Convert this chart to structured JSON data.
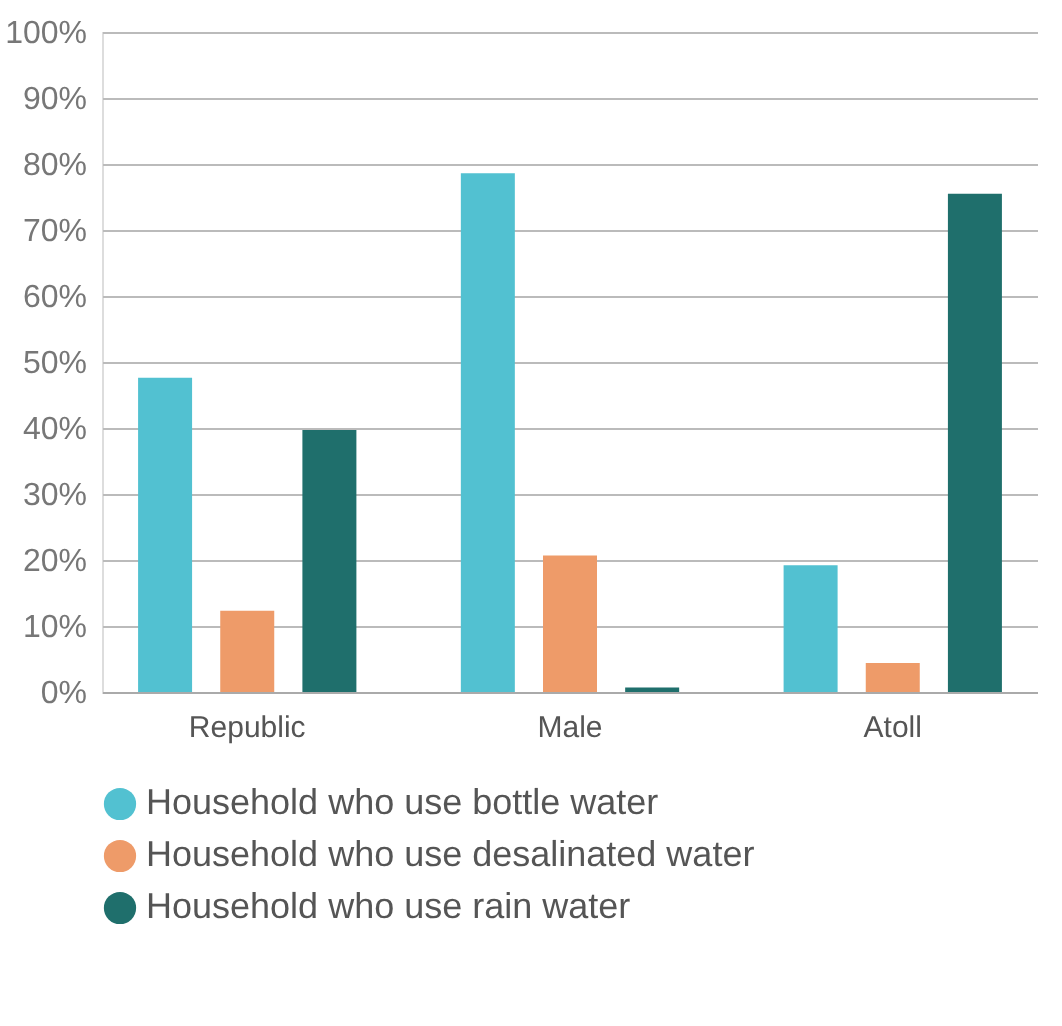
{
  "chart_data": {
    "type": "bar",
    "categories": [
      "Republic",
      "Male",
      "Atoll"
    ],
    "series": [
      {
        "name": "Household who use bottle water",
        "color": "#52c1d1",
        "values": [
          47.6,
          78.6,
          19.2
        ]
      },
      {
        "name": "Household who use desalinated water",
        "color": "#ee9b69",
        "values": [
          12.3,
          20.7,
          4.4
        ]
      },
      {
        "name": "Household who use rain water",
        "color": "#1f6f6c",
        "values": [
          39.7,
          0.7,
          75.5
        ]
      }
    ],
    "ylim": [
      0,
      100
    ],
    "yticks": [
      {
        "value": 0,
        "label": "0%"
      },
      {
        "value": 10,
        "label": "10%"
      },
      {
        "value": 20,
        "label": "20%"
      },
      {
        "value": 30,
        "label": "30%"
      },
      {
        "value": 40,
        "label": "40%"
      },
      {
        "value": 50,
        "label": "50%"
      },
      {
        "value": 60,
        "label": "60%"
      },
      {
        "value": 70,
        "label": "70%"
      },
      {
        "value": 80,
        "label": "80%"
      },
      {
        "value": 90,
        "label": "90%"
      },
      {
        "value": 100,
        "label": "100%"
      }
    ],
    "grid": "y",
    "legend": "bottom",
    "marker": "circle"
  }
}
